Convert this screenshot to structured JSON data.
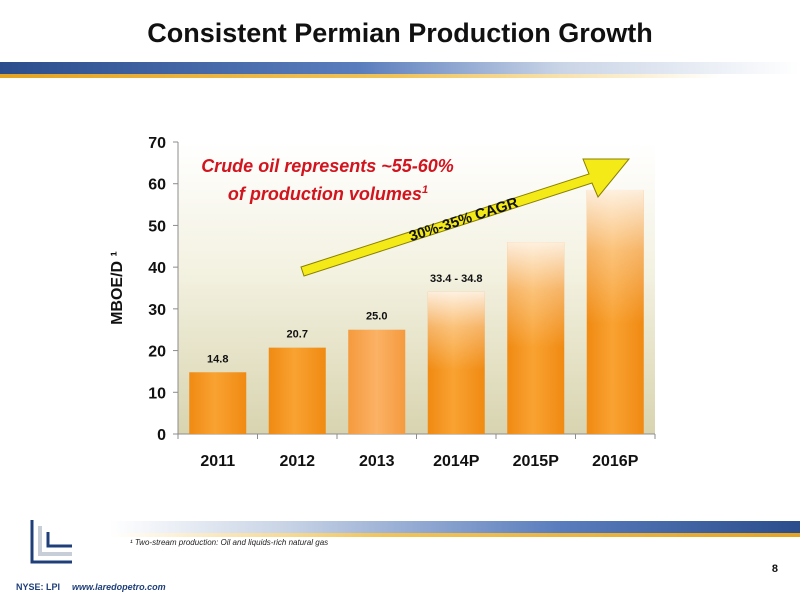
{
  "title": "Consistent Permian Production Growth",
  "chart_data": {
    "type": "bar",
    "categories": [
      "2011",
      "2012",
      "2013",
      "2014P",
      "2015P",
      "2016P"
    ],
    "values": [
      14.8,
      20.7,
      25.0,
      34.1,
      46.0,
      58.5
    ],
    "data_labels": [
      "14.8",
      "20.7",
      "25.0",
      "33.4 - 34.8",
      "",
      ""
    ],
    "ylabel": "MBOE/D ¹",
    "xlabel": "",
    "ylim": [
      0,
      70
    ],
    "yticks": [
      0,
      10,
      20,
      30,
      40,
      50,
      60,
      70
    ],
    "grid": false,
    "bar_color": "#f7941d",
    "annotation": {
      "line1": "Crude oil represents ~55-60%",
      "line2": "of production volumes",
      "sup": "1",
      "color": "#d2141e"
    },
    "arrow": {
      "label": "30%-35% CAGR",
      "fill": "#f3ea18",
      "stroke": "#8a8000"
    }
  },
  "footnote": "¹ Two-stream production: Oil and liquids-rich natural gas",
  "page_number": "8",
  "footer": {
    "ticker": "NYSE: LPI",
    "website": "www.laredopetro.com"
  }
}
